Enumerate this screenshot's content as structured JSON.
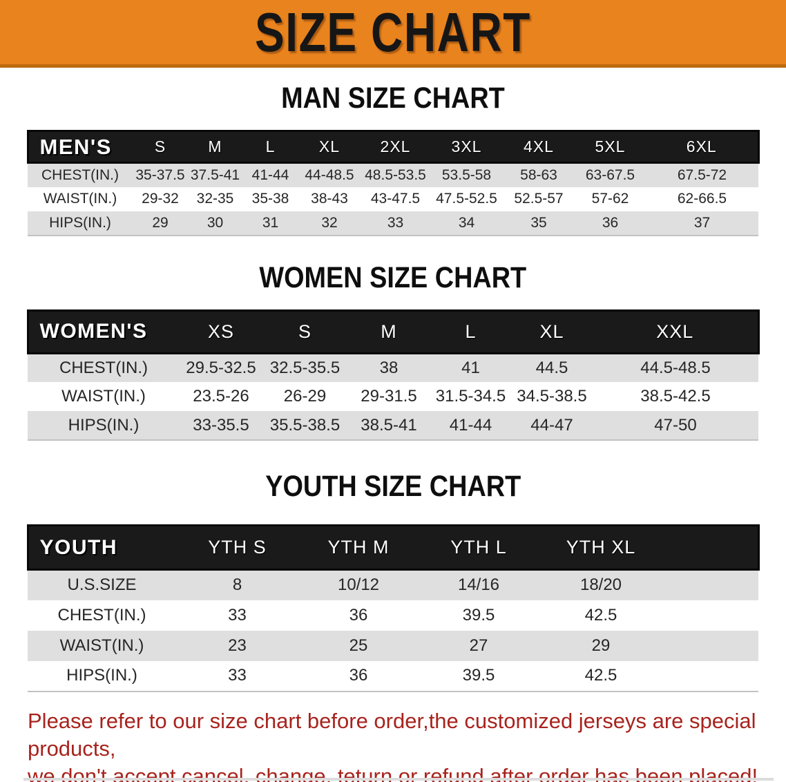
{
  "banner": {
    "title": "SIZE CHART"
  },
  "colors": {
    "banner_bg": "#E8831E",
    "banner_text": "#161616",
    "header_bar_bg": "#1A1A1A",
    "header_bar_text": "#FFFFFF",
    "row_shade": "#DFDFDF",
    "notice_text": "#A8231D"
  },
  "sections": [
    {
      "id": "mens",
      "heading": "MAN SIZE CHART",
      "table": {
        "label": "MEN'S",
        "columns": [
          "S",
          "M",
          "L",
          "XL",
          "2XL",
          "3XL",
          "4XL",
          "5XL",
          "6XL"
        ],
        "rows": [
          {
            "label": "CHEST(IN.)",
            "values": [
              "35-37.5",
              "37.5-41",
              "41-44",
              "44-48.5",
              "48.5-53.5",
              "53.5-58",
              "58-63",
              "63-67.5",
              "67.5-72"
            ]
          },
          {
            "label": "WAIST(IN.)",
            "values": [
              "29-32",
              "32-35",
              "35-38",
              "38-43",
              "43-47.5",
              "47.5-52.5",
              "52.5-57",
              "57-62",
              "62-66.5"
            ]
          },
          {
            "label": "HIPS(IN.)",
            "values": [
              "29",
              "30",
              "31",
              "32",
              "33",
              "34",
              "35",
              "36",
              "37"
            ]
          }
        ]
      }
    },
    {
      "id": "womens",
      "heading": "WOMEN SIZE CHART",
      "table": {
        "label": "WOMEN'S",
        "columns": [
          "XS",
          "S",
          "M",
          "L",
          "XL",
          "XXL"
        ],
        "rows": [
          {
            "label": "CHEST(IN.)",
            "values": [
              "29.5-32.5",
              "32.5-35.5",
              "38",
              "41",
              "44.5",
              "44.5-48.5"
            ]
          },
          {
            "label": "WAIST(IN.)",
            "values": [
              "23.5-26",
              "26-29",
              "29-31.5",
              "31.5-34.5",
              "34.5-38.5",
              "38.5-42.5"
            ]
          },
          {
            "label": "HIPS(IN.)",
            "values": [
              "33-35.5",
              "35.5-38.5",
              "38.5-41",
              "41-44",
              "44-47",
              "47-50"
            ]
          }
        ]
      }
    },
    {
      "id": "youth",
      "heading": "YOUTH SIZE CHART",
      "table": {
        "label": "YOUTH",
        "columns": [
          "YTH S",
          "YTH M",
          "YTH L",
          "YTH XL"
        ],
        "rows": [
          {
            "label": "U.S.SIZE",
            "values": [
              "8",
              "10/12",
              "14/16",
              "18/20"
            ]
          },
          {
            "label": "CHEST(IN.)",
            "values": [
              "33",
              "36",
              "39.5",
              "42.5"
            ]
          },
          {
            "label": "WAIST(IN.)",
            "values": [
              "23",
              "25",
              "27",
              "29"
            ]
          },
          {
            "label": "HIPS(IN.)",
            "values": [
              "33",
              "36",
              "39.5",
              "42.5"
            ]
          }
        ]
      }
    }
  ],
  "footer": {
    "lines": [
      "Please refer to our size chart before order,the customized jerseys are special products,",
      "we don't accept cancel, change, teturn or refund after order has been placed!"
    ]
  }
}
